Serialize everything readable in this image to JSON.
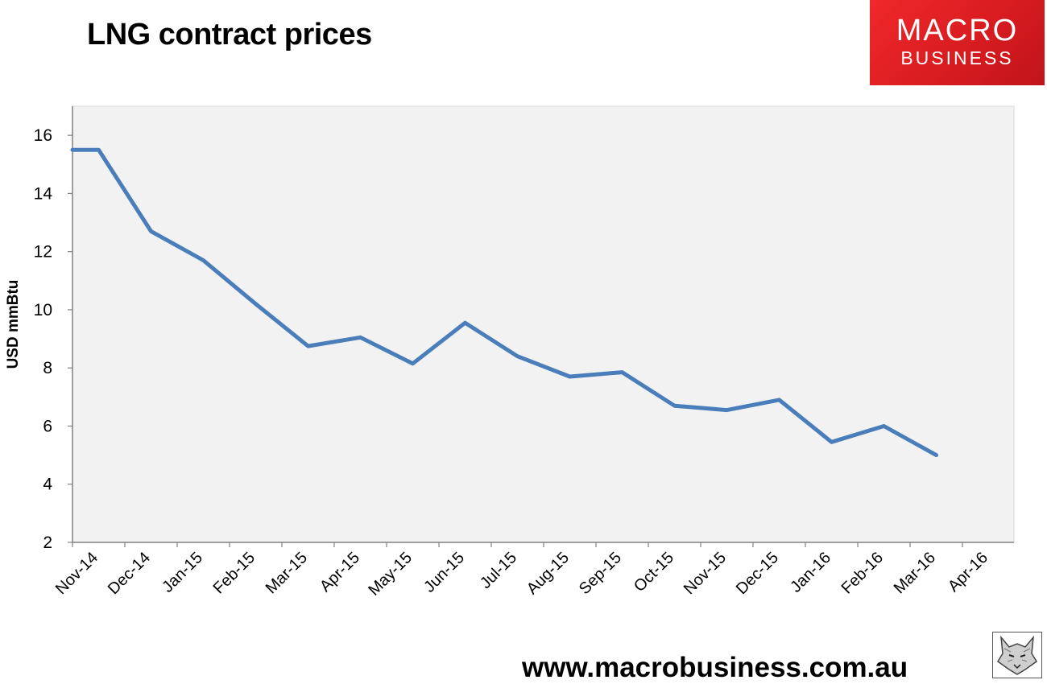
{
  "header": {
    "title": "LNG contract prices"
  },
  "brand": {
    "top": "MACRO",
    "bottom": "BUSINESS"
  },
  "footer": {
    "url": "www.macrobusiness.com.au"
  },
  "colors": {
    "line": "#4a7ebb",
    "plot_background": "#f2f2f2",
    "brand_red": "#e02126"
  },
  "icons": {
    "corner_mark": "wolf-head-icon"
  },
  "chart_data": {
    "type": "line",
    "title": "LNG contract prices",
    "ylabel": "USD mmBtu",
    "xlabel": "",
    "ylim": [
      2,
      17
    ],
    "yticks": [
      2,
      4,
      6,
      8,
      10,
      12,
      14,
      16
    ],
    "grid": false,
    "legend": "none",
    "categories": [
      "Nov-14",
      "Dec-14",
      "Jan-15",
      "Feb-15",
      "Mar-15",
      "Apr-15",
      "May-15",
      "Jun-15",
      "Jul-15",
      "Aug-15",
      "Sep-15",
      "Oct-15",
      "Nov-15",
      "Dec-15",
      "Jan-16",
      "Feb-16",
      "Mar-16",
      "Apr-16"
    ],
    "series": [
      {
        "x": [
          "Nov-14",
          "Nov-14",
          "Dec-14",
          "Jan-15",
          "Feb-15",
          "Mar-15",
          "Apr-15",
          "May-15",
          "Jun-15",
          "Jul-15",
          "Aug-15",
          "Sep-15",
          "Oct-15",
          "Nov-15",
          "Dec-15",
          "Jan-16",
          "Feb-16",
          "Mar-16"
        ],
        "x_offset_note": "",
        "values": [
          15.5,
          15.5,
          12.7,
          11.7,
          10.2,
          8.75,
          9.05,
          8.15,
          9.55,
          8.4,
          7.7,
          7.85,
          6.7,
          6.55,
          6.9,
          5.45,
          6.0,
          5.0
        ]
      }
    ]
  }
}
